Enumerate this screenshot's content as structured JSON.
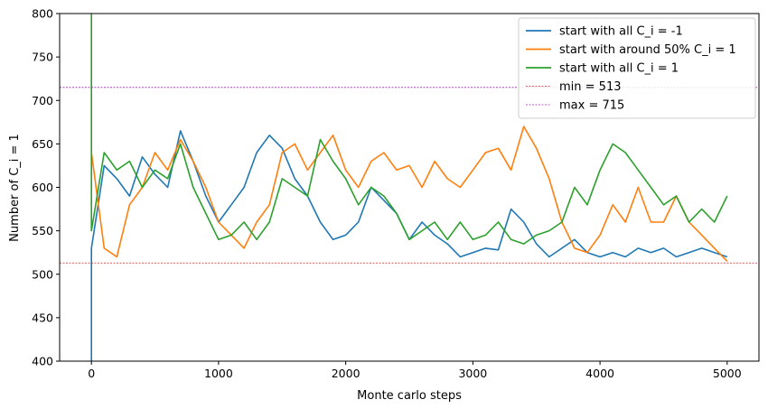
{
  "chart_data": {
    "type": "line",
    "title": "",
    "xlabel": "Monte carlo steps",
    "ylabel": "Number of C_i = 1",
    "xlim": [
      -250,
      5250
    ],
    "ylim": [
      400,
      800
    ],
    "x_ticks": [
      0,
      1000,
      2000,
      3000,
      4000,
      5000
    ],
    "y_ticks": [
      400,
      450,
      500,
      550,
      600,
      650,
      700,
      750,
      800
    ],
    "grid": false,
    "legend_position": "top-right",
    "series": [
      {
        "name": "start with all C_i = -1",
        "color": "#1f77b4",
        "start": [
          0,
          400
        ],
        "x": [
          0,
          100,
          200,
          300,
          400,
          500,
          600,
          700,
          800,
          900,
          1000,
          1100,
          1200,
          1300,
          1400,
          1500,
          1600,
          1700,
          1800,
          1900,
          2000,
          2100,
          2200,
          2300,
          2400,
          2500,
          2600,
          2700,
          2800,
          2900,
          3000,
          3100,
          3200,
          3300,
          3400,
          3500,
          3600,
          3700,
          3800,
          3900,
          4000,
          4100,
          4200,
          4300,
          4400,
          4500,
          4600,
          4700,
          4800,
          4900,
          5000
        ],
        "y": [
          530,
          625,
          610,
          590,
          635,
          615,
          600,
          665,
          630,
          590,
          560,
          580,
          600,
          640,
          660,
          645,
          610,
          590,
          560,
          540,
          545,
          560,
          600,
          585,
          570,
          540,
          560,
          545,
          535,
          520,
          525,
          530,
          528,
          575,
          560,
          535,
          520,
          530,
          540,
          525,
          520,
          525,
          520,
          530,
          525,
          530,
          520,
          525,
          530,
          525,
          520
        ]
      },
      {
        "name": "start with around 50% C_i = 1",
        "color": "#ff7f0e",
        "start": null,
        "x": [
          0,
          100,
          200,
          300,
          400,
          500,
          600,
          700,
          800,
          900,
          1000,
          1100,
          1200,
          1300,
          1400,
          1500,
          1600,
          1700,
          1800,
          1900,
          2000,
          2100,
          2200,
          2300,
          2400,
          2500,
          2600,
          2700,
          2800,
          2900,
          3000,
          3100,
          3200,
          3300,
          3400,
          3500,
          3600,
          3700,
          3800,
          3900,
          4000,
          4100,
          4200,
          4300,
          4400,
          4500,
          4600,
          4700,
          4800,
          4900,
          5000
        ],
        "y": [
          640,
          530,
          520,
          580,
          600,
          640,
          620,
          655,
          630,
          600,
          560,
          545,
          530,
          560,
          580,
          640,
          650,
          620,
          640,
          660,
          620,
          600,
          630,
          640,
          620,
          625,
          600,
          630,
          610,
          600,
          620,
          640,
          645,
          620,
          670,
          645,
          610,
          560,
          530,
          525,
          545,
          580,
          560,
          600,
          560,
          560,
          590,
          560,
          545,
          530,
          515
        ]
      },
      {
        "name": "start with all C_i = 1",
        "color": "#2ca02c",
        "start": [
          0,
          800
        ],
        "x": [
          0,
          100,
          200,
          300,
          400,
          500,
          600,
          700,
          800,
          900,
          1000,
          1100,
          1200,
          1300,
          1400,
          1500,
          1600,
          1700,
          1800,
          1900,
          2000,
          2100,
          2200,
          2300,
          2400,
          2500,
          2600,
          2700,
          2800,
          2900,
          3000,
          3100,
          3200,
          3300,
          3400,
          3500,
          3600,
          3700,
          3800,
          3900,
          4000,
          4100,
          4200,
          4300,
          4400,
          4500,
          4600,
          4700,
          4800,
          4900,
          5000
        ],
        "y": [
          550,
          640,
          620,
          630,
          600,
          620,
          610,
          650,
          600,
          570,
          540,
          545,
          560,
          540,
          560,
          610,
          600,
          590,
          655,
          630,
          610,
          580,
          600,
          590,
          570,
          540,
          550,
          560,
          540,
          560,
          540,
          545,
          560,
          540,
          535,
          545,
          550,
          560,
          600,
          580,
          620,
          650,
          640,
          620,
          600,
          580,
          590,
          560,
          575,
          560,
          590
        ]
      },
      {
        "name": "min = 513",
        "color": "#d62728",
        "kind": "hline",
        "y": 513
      },
      {
        "name": "max = 715",
        "color": "#9c27b0",
        "kind": "hline",
        "y": 715
      }
    ]
  }
}
